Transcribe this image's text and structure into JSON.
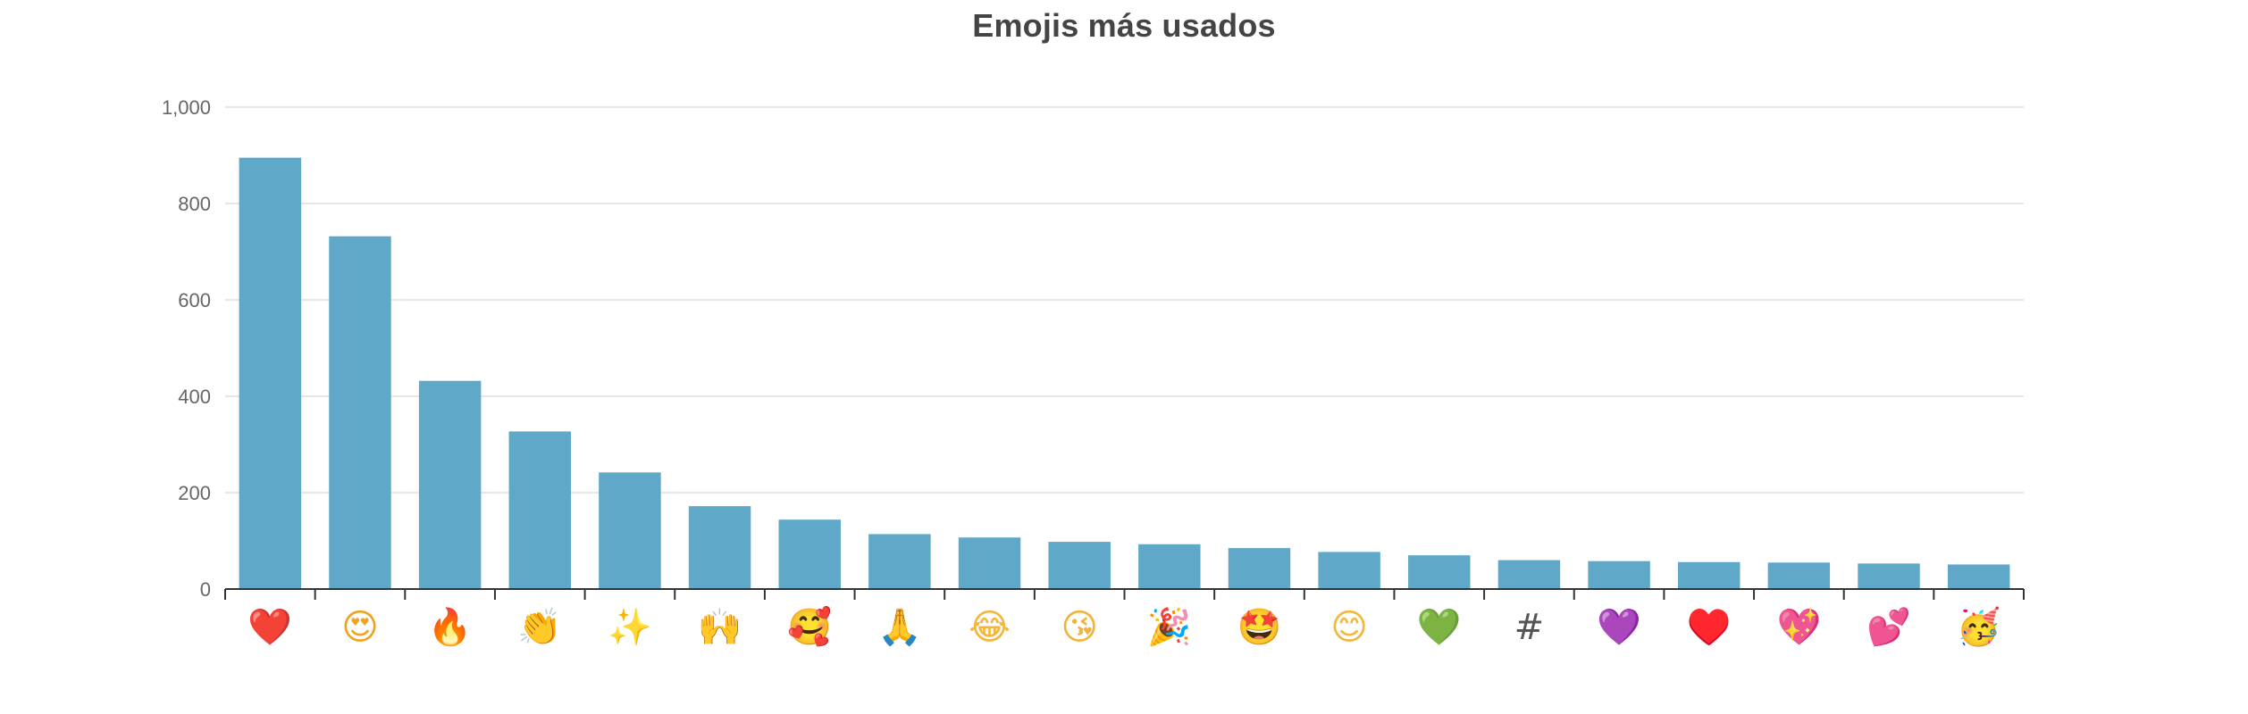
{
  "chart_data": {
    "type": "bar",
    "title": "Emojis más usados",
    "xlabel": "",
    "ylabel": "",
    "ylim": [
      0,
      1000
    ],
    "yticks": [
      0,
      200,
      400,
      600,
      800,
      1000
    ],
    "ytick_labels": [
      "0",
      "200",
      "400",
      "600",
      "800",
      "1,000"
    ],
    "grid": true,
    "bar_color": "#5fa8c8",
    "categories": [
      "❤️",
      "😍",
      "🔥",
      "👏",
      "✨",
      "🙌",
      "🥰",
      "🙏",
      "😂",
      "😘",
      "🎉",
      "🤩",
      "😊",
      "💚",
      "#",
      "💜",
      "♥️",
      "💖",
      "💕",
      "🥳"
    ],
    "category_colors": [
      "#e0242f",
      "#f0a21e",
      "#f26a1b",
      "#f6b73c",
      "#f5c542",
      "#f2b33d",
      "#f2a93c",
      "#f0b23a",
      "#f4b53c",
      "#f2b23c",
      "#e8a23a",
      "#f3b53c",
      "#f4b63c",
      "#3cba3c",
      "#555555",
      "#9b4de0",
      "#c8202b",
      "#e8489a",
      "#ee4f9e",
      "#f3b63c"
    ],
    "values": [
      895,
      732,
      432,
      327,
      242,
      172,
      144,
      114,
      107,
      98,
      93,
      85,
      77,
      70,
      60,
      58,
      56,
      55,
      53,
      51
    ]
  }
}
